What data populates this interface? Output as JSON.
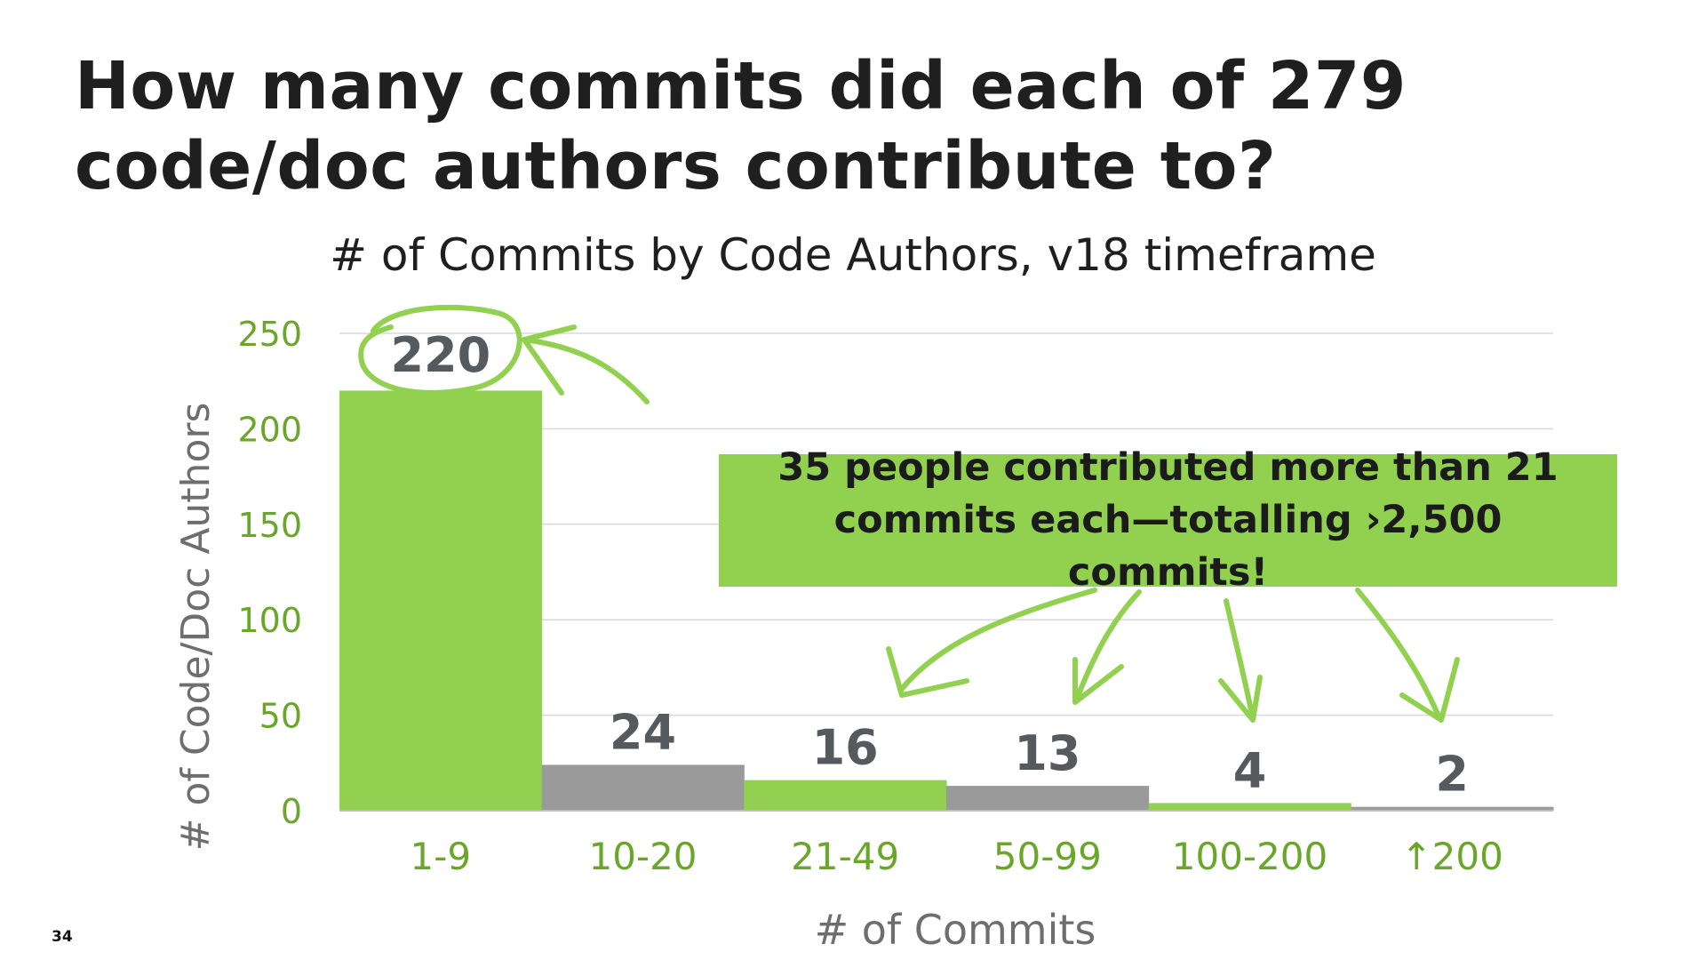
{
  "slide": {
    "title": "How many commits did each of 279 code/doc authors contribute to?",
    "page_number": "34"
  },
  "callout": {
    "text": "35 people contributed more than 21 commits each—totalling ›2,500 commits!"
  },
  "colors": {
    "green": "#92d050",
    "gray": "#9a9a9a",
    "axis_text_green": "#6aa62a",
    "axis_title_gray": "#6e6e6e",
    "data_label_gray": "#555a5f",
    "grid": "#d9d9d9"
  },
  "chart_data": {
    "type": "bar",
    "title": "# of Commits by Code Authors, v18 timeframe",
    "xlabel": "# of Commits",
    "ylabel": "# of Code/Doc Authors",
    "categories": [
      "1-9",
      "10-20",
      "21-49",
      "50-99",
      "100-200",
      "↑200"
    ],
    "values": [
      220,
      24,
      16,
      13,
      4,
      2
    ],
    "bar_colors": [
      "#92d050",
      "#9a9a9a",
      "#92d050",
      "#9a9a9a",
      "#92d050",
      "#9a9a9a"
    ],
    "ylim": [
      0,
      250
    ],
    "yticks": [
      0,
      50,
      100,
      150,
      200,
      250
    ],
    "grid": true,
    "legend": "none"
  }
}
